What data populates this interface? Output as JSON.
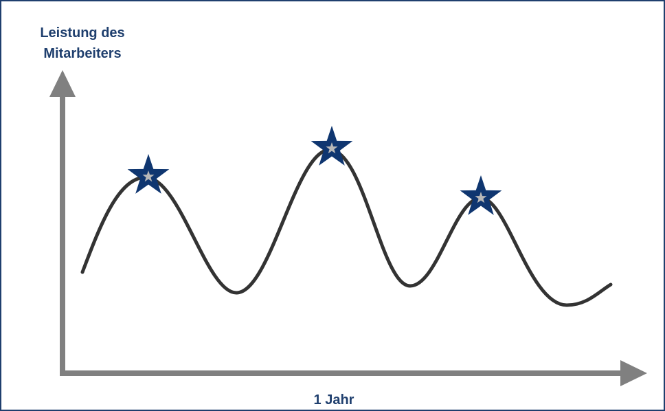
{
  "y_axis_label_lines": [
    "Leistung des",
    "Mitarbeiters"
  ],
  "x_axis_label": "1 Jahr",
  "colors": {
    "border": "#1f3f6e",
    "label": "#1f3f6e",
    "axis": "#808080",
    "curve": "#333333",
    "star_fill": "#0f3670",
    "star_inner": "#b8b8b8"
  },
  "peaks_marked": 3
}
